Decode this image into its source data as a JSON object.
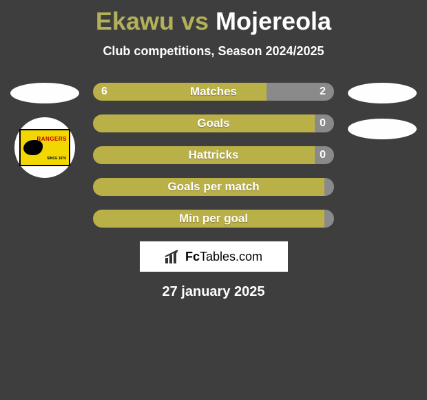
{
  "title": {
    "left_name": "Ekawu",
    "separator": "vs",
    "right_name": "Mojereola",
    "left_color": "#b3b05a",
    "right_color": "#ffffff"
  },
  "subtitle": "Club competitions, Season 2024/2025",
  "left_team": {
    "badge_text": "RANGERS",
    "badge_sub": "SINCE 1970",
    "badge_bg": "#f2d800",
    "badge_text_color": "#c00000"
  },
  "bars": {
    "track_width": 350,
    "track_height": 26,
    "left_color": "#bab048",
    "right_color": "#8a8a8a",
    "label_color": "#ffffff",
    "rows": [
      {
        "label": "Matches",
        "left_val": "6",
        "right_val": "2",
        "left_pct": 72,
        "right_pct": 28
      },
      {
        "label": "Goals",
        "left_val": "",
        "right_val": "0",
        "left_pct": 92,
        "right_pct": 8
      },
      {
        "label": "Hattricks",
        "left_val": "",
        "right_val": "0",
        "left_pct": 92,
        "right_pct": 8
      },
      {
        "label": "Goals per match",
        "left_val": "",
        "right_val": "",
        "left_pct": 96,
        "right_pct": 4
      },
      {
        "label": "Min per goal",
        "left_val": "",
        "right_val": "",
        "left_pct": 96,
        "right_pct": 4
      }
    ]
  },
  "footer": {
    "brand_prefix": "Fc",
    "brand_suffix": "Tables.com",
    "date": "27 january 2025",
    "bg": "#ffffff",
    "text_color": "#000000"
  }
}
